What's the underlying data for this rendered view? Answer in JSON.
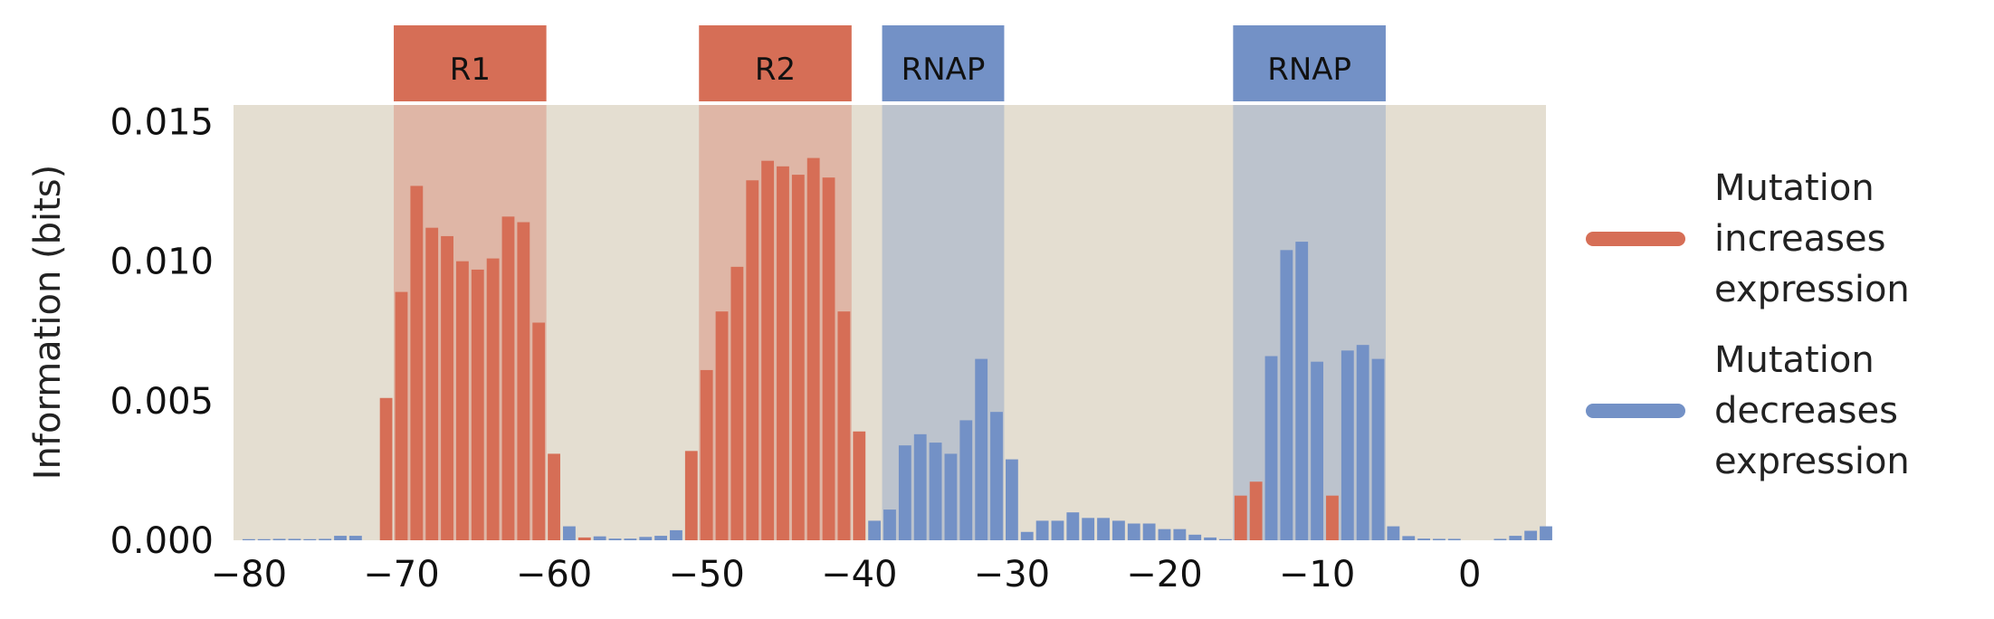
{
  "chart_data": {
    "type": "bar",
    "title": "",
    "xlabel": "",
    "ylabel": "Information (bits)",
    "xlim": [
      -81,
      5
    ],
    "ylim": [
      0,
      0.0156
    ],
    "x_ticks": [
      -80,
      -70,
      -60,
      -50,
      -40,
      -30,
      -20,
      -10,
      0
    ],
    "y_ticks": [
      0.0,
      0.005,
      0.01,
      0.015
    ],
    "x_tick_labels": [
      "−80",
      "−70",
      "−60",
      "−50",
      "−40",
      "−30",
      "−20",
      "−10",
      "0"
    ],
    "y_tick_labels": [
      "0.000",
      "0.005",
      "0.010",
      "0.015"
    ],
    "grid": false,
    "legend_position": "right",
    "colors": {
      "increase": "#D66E56",
      "decrease": "#7391C6",
      "background": "#E4DED1"
    },
    "regions": [
      {
        "label": "R1",
        "start": -70.5,
        "end": -60.5,
        "kind": "increase"
      },
      {
        "label": "R2",
        "start": -50.5,
        "end": -40.5,
        "kind": "increase"
      },
      {
        "label": "RNAP",
        "start": -38.5,
        "end": -30.5,
        "kind": "decrease"
      },
      {
        "label": "RNAP",
        "start": -15.5,
        "end": -5.5,
        "kind": "decrease"
      }
    ],
    "series": [
      {
        "key": "increase",
        "name": "Mutation increases expression",
        "legend_text": "Mutation\nincreases\nexpression"
      },
      {
        "key": "decrease",
        "name": "Mutation decreases expression",
        "legend_text": "Mutation\ndecreases\nexpression"
      }
    ],
    "bars": [
      {
        "x": -80,
        "value": 4e-05,
        "series": "decrease"
      },
      {
        "x": -79,
        "value": 4e-05,
        "series": "decrease"
      },
      {
        "x": -78,
        "value": 5e-05,
        "series": "decrease"
      },
      {
        "x": -77,
        "value": 5e-05,
        "series": "decrease"
      },
      {
        "x": -76,
        "value": 4e-05,
        "series": "decrease"
      },
      {
        "x": -75,
        "value": 5e-05,
        "series": "decrease"
      },
      {
        "x": -74,
        "value": 0.00016,
        "series": "decrease"
      },
      {
        "x": -73,
        "value": 0.00016,
        "series": "decrease"
      },
      {
        "x": -71,
        "value": 0.0051,
        "series": "increase"
      },
      {
        "x": -70,
        "value": 0.0089,
        "series": "increase"
      },
      {
        "x": -69,
        "value": 0.0127,
        "series": "increase"
      },
      {
        "x": -68,
        "value": 0.0112,
        "series": "increase"
      },
      {
        "x": -67,
        "value": 0.0109,
        "series": "increase"
      },
      {
        "x": -66,
        "value": 0.01,
        "series": "increase"
      },
      {
        "x": -65,
        "value": 0.0097,
        "series": "increase"
      },
      {
        "x": -64,
        "value": 0.0101,
        "series": "increase"
      },
      {
        "x": -63,
        "value": 0.0116,
        "series": "increase"
      },
      {
        "x": -62,
        "value": 0.0114,
        "series": "increase"
      },
      {
        "x": -61,
        "value": 0.0078,
        "series": "increase"
      },
      {
        "x": -60,
        "value": 0.0031,
        "series": "increase"
      },
      {
        "x": -59,
        "value": 0.0005,
        "series": "decrease"
      },
      {
        "x": -58,
        "value": 0.0001,
        "series": "increase"
      },
      {
        "x": -57,
        "value": 0.00014,
        "series": "decrease"
      },
      {
        "x": -56,
        "value": 6e-05,
        "series": "decrease"
      },
      {
        "x": -55,
        "value": 6e-05,
        "series": "decrease"
      },
      {
        "x": -54,
        "value": 0.00012,
        "series": "decrease"
      },
      {
        "x": -53,
        "value": 0.00016,
        "series": "decrease"
      },
      {
        "x": -52,
        "value": 0.00036,
        "series": "decrease"
      },
      {
        "x": -51,
        "value": 0.0032,
        "series": "increase"
      },
      {
        "x": -50,
        "value": 0.0061,
        "series": "increase"
      },
      {
        "x": -49,
        "value": 0.0082,
        "series": "increase"
      },
      {
        "x": -48,
        "value": 0.0098,
        "series": "increase"
      },
      {
        "x": -47,
        "value": 0.0129,
        "series": "increase"
      },
      {
        "x": -46,
        "value": 0.0136,
        "series": "increase"
      },
      {
        "x": -45,
        "value": 0.0134,
        "series": "increase"
      },
      {
        "x": -44,
        "value": 0.0131,
        "series": "increase"
      },
      {
        "x": -43,
        "value": 0.0137,
        "series": "increase"
      },
      {
        "x": -42,
        "value": 0.013,
        "series": "increase"
      },
      {
        "x": -41,
        "value": 0.0082,
        "series": "increase"
      },
      {
        "x": -40,
        "value": 0.0039,
        "series": "increase"
      },
      {
        "x": -39,
        "value": 0.0007,
        "series": "decrease"
      },
      {
        "x": -38,
        "value": 0.0011,
        "series": "decrease"
      },
      {
        "x": -37,
        "value": 0.0034,
        "series": "decrease"
      },
      {
        "x": -36,
        "value": 0.0038,
        "series": "decrease"
      },
      {
        "x": -35,
        "value": 0.0035,
        "series": "decrease"
      },
      {
        "x": -34,
        "value": 0.0031,
        "series": "decrease"
      },
      {
        "x": -33,
        "value": 0.0043,
        "series": "decrease"
      },
      {
        "x": -32,
        "value": 0.0065,
        "series": "decrease"
      },
      {
        "x": -31,
        "value": 0.0046,
        "series": "decrease"
      },
      {
        "x": -30,
        "value": 0.0029,
        "series": "decrease"
      },
      {
        "x": -29,
        "value": 0.0003,
        "series": "decrease"
      },
      {
        "x": -28,
        "value": 0.0007,
        "series": "decrease"
      },
      {
        "x": -27,
        "value": 0.0007,
        "series": "decrease"
      },
      {
        "x": -26,
        "value": 0.001,
        "series": "decrease"
      },
      {
        "x": -25,
        "value": 0.0008,
        "series": "decrease"
      },
      {
        "x": -24,
        "value": 0.0008,
        "series": "decrease"
      },
      {
        "x": -23,
        "value": 0.0007,
        "series": "decrease"
      },
      {
        "x": -22,
        "value": 0.0006,
        "series": "decrease"
      },
      {
        "x": -21,
        "value": 0.0006,
        "series": "decrease"
      },
      {
        "x": -20,
        "value": 0.0004,
        "series": "decrease"
      },
      {
        "x": -19,
        "value": 0.0004,
        "series": "decrease"
      },
      {
        "x": -18,
        "value": 0.0002,
        "series": "decrease"
      },
      {
        "x": -17,
        "value": 0.0001,
        "series": "decrease"
      },
      {
        "x": -16,
        "value": 4e-05,
        "series": "decrease"
      },
      {
        "x": -15,
        "value": 0.0016,
        "series": "increase"
      },
      {
        "x": -14,
        "value": 0.0021,
        "series": "increase"
      },
      {
        "x": -13,
        "value": 0.0066,
        "series": "decrease"
      },
      {
        "x": -12,
        "value": 0.0104,
        "series": "decrease"
      },
      {
        "x": -11,
        "value": 0.0107,
        "series": "decrease"
      },
      {
        "x": -10,
        "value": 0.0064,
        "series": "decrease"
      },
      {
        "x": -9,
        "value": 0.0016,
        "series": "increase"
      },
      {
        "x": -8,
        "value": 0.0068,
        "series": "decrease"
      },
      {
        "x": -7,
        "value": 0.007,
        "series": "decrease"
      },
      {
        "x": -6,
        "value": 0.0065,
        "series": "decrease"
      },
      {
        "x": -5,
        "value": 0.0005,
        "series": "decrease"
      },
      {
        "x": -4,
        "value": 0.00015,
        "series": "decrease"
      },
      {
        "x": -3,
        "value": 6e-05,
        "series": "decrease"
      },
      {
        "x": -2,
        "value": 5e-05,
        "series": "decrease"
      },
      {
        "x": -1,
        "value": 5e-05,
        "series": "decrease"
      },
      {
        "x": 2,
        "value": 5e-05,
        "series": "decrease"
      },
      {
        "x": 3,
        "value": 0.00016,
        "series": "decrease"
      },
      {
        "x": 4,
        "value": 0.00034,
        "series": "decrease"
      },
      {
        "x": 5,
        "value": 0.0005,
        "series": "decrease"
      }
    ]
  }
}
